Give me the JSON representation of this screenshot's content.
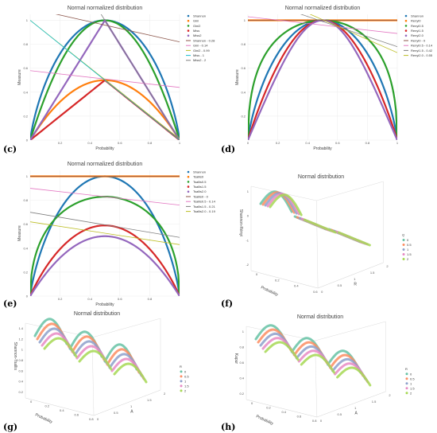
{
  "colors": {
    "blue": "#1f77b4",
    "orange": "#ff7f0e",
    "green": "#2ca02c",
    "red": "#d62728",
    "purple": "#9467bd",
    "brown": "#8c564b",
    "pink": "#e377c2",
    "olive": "#bcbd22",
    "teal": "#17becf",
    "gray": "#7f7f7f",
    "q0": "#66c2a5",
    "q05": "#fc8d62",
    "q1": "#8da0cb",
    "q15": "#e78ac3",
    "q2": "#a6d854"
  },
  "chart_data": [
    {
      "panel": "(c)",
      "type": "scatter",
      "title": "Normal normalized distribution",
      "xlabel": "Probability",
      "ylabel": "Measure",
      "xlim": [
        0,
        1
      ],
      "ylim": [
        0,
        1.05
      ],
      "x_ticks": [
        "0.2",
        "0.4",
        "0.6",
        "0.8",
        "1"
      ],
      "y_ticks": [
        "0",
        "0.2",
        "0.4",
        "0.6",
        "0.8",
        "1"
      ],
      "legend_position": "right",
      "series": [
        {
          "name": "Shannon",
          "kind": "curve",
          "shape": "entropy",
          "peak": 1.0,
          "color": "blue"
        },
        {
          "name": "Gini",
          "kind": "curve",
          "shape": "gini",
          "peak": 0.5,
          "color": "orange"
        },
        {
          "name": "Gini2",
          "kind": "curve",
          "shape": "gini2",
          "peak": 1.0,
          "color": "green"
        },
        {
          "name": "Miss",
          "kind": "curve",
          "shape": "tri",
          "peak": 0.5,
          "color": "red"
        },
        {
          "name": "Miss2",
          "kind": "curve",
          "shape": "tri",
          "peak": 1.0,
          "color": "purple"
        },
        {
          "name": "Shannon - 0.28",
          "kind": "line",
          "y0": 1.1,
          "slope": -0.28,
          "color": "brown"
        },
        {
          "name": "Gini - 0.14",
          "kind": "line",
          "y0": 0.58,
          "slope": -0.14,
          "color": "pink"
        },
        {
          "name": "Gini2 - 0.99",
          "kind": "line",
          "y0": 1.0,
          "slope": -0.99,
          "color": "olive"
        },
        {
          "name": "Miss - 1",
          "kind": "line",
          "y0": 1.0,
          "slope": -1.0,
          "color": "teal"
        },
        {
          "name": "Miss2 - 2",
          "kind": "line",
          "y0": 2.0,
          "slope": -2.0,
          "color": "gray"
        }
      ]
    },
    {
      "panel": "(d)",
      "type": "scatter",
      "title": "Normal normalized distribution",
      "xlabel": "Probability",
      "ylabel": "Measure",
      "xlim": [
        0,
        1
      ],
      "ylim": [
        0,
        1.05
      ],
      "x_ticks": [
        "0",
        "0.2",
        "0.4",
        "0.6",
        "0.8",
        "1"
      ],
      "y_ticks": [
        "0.2",
        "0.4",
        "0.6",
        "0.8",
        "1"
      ],
      "legend_position": "right",
      "series": [
        {
          "name": "Shannon",
          "kind": "curve",
          "shape": "entropy",
          "peak": 1.0,
          "color": "blue"
        },
        {
          "name": "Renyi0",
          "kind": "curve",
          "shape": "flat",
          "peak": 1.0,
          "color": "orange"
        },
        {
          "name": "Renyi0.5",
          "kind": "curve",
          "shape": "renyi05",
          "peak": 1.0,
          "color": "green"
        },
        {
          "name": "Renyi1.5",
          "kind": "curve",
          "shape": "renyi15",
          "peak": 1.0,
          "color": "red"
        },
        {
          "name": "Renyi2.0",
          "kind": "curve",
          "shape": "renyi2",
          "peak": 1.0,
          "color": "purple"
        },
        {
          "name": "Renyi0 - 0",
          "kind": "line",
          "y0": 1.0,
          "slope": 0,
          "color": "brown"
        },
        {
          "name": "Renyi0.5 - 0.14",
          "kind": "line",
          "y0": 1.03,
          "slope": -0.14,
          "color": "pink"
        },
        {
          "name": "Renyi1.5 - 0.42",
          "kind": "line",
          "y0": 1.2,
          "slope": -0.42,
          "color": "gray"
        },
        {
          "name": "Renyi2.0 - 0.55",
          "kind": "line",
          "y0": 1.28,
          "slope": -0.55,
          "color": "olive"
        }
      ]
    },
    {
      "panel": "(e)",
      "type": "scatter",
      "title": "Normal normalized distribution",
      "xlabel": "Probability",
      "ylabel": "Measure",
      "xlim": [
        0,
        1
      ],
      "ylim": [
        0,
        1.05
      ],
      "x_ticks": [
        "0.2",
        "0.4",
        "0.6",
        "0.8"
      ],
      "y_ticks": [
        "0",
        "0.2",
        "0.4",
        "0.6",
        "0.8",
        "1"
      ],
      "legend_position": "right",
      "series": [
        {
          "name": "Shannon",
          "kind": "curve",
          "shape": "entropy",
          "peak": 1.0,
          "color": "blue"
        },
        {
          "name": "Tsallis0",
          "kind": "curve",
          "shape": "flat",
          "peak": 1.0,
          "color": "orange"
        },
        {
          "name": "Tsallis0.5",
          "kind": "curve",
          "shape": "tsallis05",
          "peak": 0.83,
          "color": "green"
        },
        {
          "name": "Tsallis1.5",
          "kind": "curve",
          "shape": "tsallis15",
          "peak": 0.59,
          "color": "red"
        },
        {
          "name": "Tsallis2.0",
          "kind": "curve",
          "shape": "gini",
          "peak": 0.5,
          "color": "purple"
        },
        {
          "name": "Tsallis0 - 0",
          "kind": "line",
          "y0": 1.0,
          "slope": 0,
          "color": "brown"
        },
        {
          "name": "Tsallis0.5 - 0.14",
          "kind": "line",
          "y0": 0.9,
          "slope": -0.14,
          "color": "pink"
        },
        {
          "name": "Tsallis1.5 - 0.21",
          "kind": "line",
          "y0": 0.7,
          "slope": -0.21,
          "color": "gray"
        },
        {
          "name": "Tsallis2.0 - 0.19",
          "kind": "line",
          "y0": 0.62,
          "slope": -0.19,
          "color": "olive"
        }
      ]
    },
    {
      "panel": "(f)",
      "type": "scatter3d",
      "title": "Normal distribution",
      "xlabel": "Probability",
      "ylabel": "R",
      "zlabel": "Shannon-Rényi",
      "z_ticks": [
        "1",
        "0",
        "-1",
        "-2"
      ],
      "prob_ticks": [
        "0",
        "0.2",
        "0.4",
        "0.6"
      ],
      "r_ticks": [
        "0",
        "0.5",
        "1",
        "1.5",
        "2"
      ],
      "legend_title": "Q",
      "legend_position": "right",
      "series": [
        {
          "name": "0",
          "color": "q0"
        },
        {
          "name": "0.5",
          "color": "q05"
        },
        {
          "name": "1",
          "color": "q1"
        },
        {
          "name": "1.5",
          "color": "q15"
        },
        {
          "name": "2",
          "color": "q2"
        }
      ]
    },
    {
      "panel": "(g)",
      "type": "scatter3d",
      "title": "Normal distribution",
      "xlabel": "Probability",
      "ylabel": "A",
      "zlabel": "Shannon-Tsallis",
      "z_ticks": [
        "1.4",
        "1.2",
        "1",
        "0.8",
        "0.6",
        "0.4",
        "0.2"
      ],
      "prob_ticks": [
        "0",
        "0.2",
        "0.4",
        "0.6",
        "0.8"
      ],
      "r_ticks": [
        "0",
        "0.5",
        "1",
        "1.5",
        "2"
      ],
      "legend_title": "R",
      "legend_position": "right",
      "series": [
        {
          "name": "0",
          "color": "q0"
        },
        {
          "name": "0.5",
          "color": "q05"
        },
        {
          "name": "1",
          "color": "q1"
        },
        {
          "name": "1.5",
          "color": "q15"
        },
        {
          "name": "2",
          "color": "q2"
        }
      ]
    },
    {
      "panel": "(h)",
      "type": "scatter3d",
      "title": "Normal distribution",
      "xlabel": "Probability",
      "ylabel": "A",
      "zlabel": "Kapur",
      "z_ticks": [
        "1",
        "0.8",
        "0.6",
        "0.4",
        "0.2"
      ],
      "prob_ticks": [
        "0",
        "0.2",
        "0.4",
        "0.6",
        "0.8"
      ],
      "r_ticks": [
        "0",
        "0.5",
        "1",
        "1.5",
        "2"
      ],
      "legend_title": "R",
      "legend_position": "right",
      "series": [
        {
          "name": "0",
          "color": "q0"
        },
        {
          "name": "0.5",
          "color": "q05"
        },
        {
          "name": "1",
          "color": "q1"
        },
        {
          "name": "1.5",
          "color": "q15"
        },
        {
          "name": "2",
          "color": "q2"
        }
      ]
    }
  ]
}
